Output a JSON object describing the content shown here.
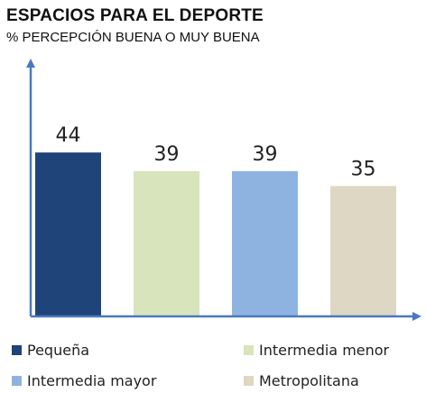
{
  "title": "ESPACIOS  PARA EL DEPORTE",
  "subtitle": "% PERCEPCIÓN  BUENA  O MUY BUENA",
  "chart_data": {
    "type": "bar",
    "title": "ESPACIOS  PARA EL DEPORTE",
    "subtitle": "% PERCEPCIÓN  BUENA  O MUY BUENA",
    "categories": [
      "Pequeña",
      "Intermedia menor",
      "Intermedia mayor",
      "Metropolitana"
    ],
    "values": [
      44,
      39,
      39,
      35
    ],
    "colors": [
      "#1f4479",
      "#d8e4bb",
      "#8eb3e0",
      "#ddd7c3"
    ],
    "data_labels": [
      "44",
      "39",
      "39",
      "35"
    ],
    "ylim": [
      0,
      68
    ],
    "grid": false,
    "legend_position": "bottom",
    "axis_color": "#4a78c4"
  },
  "legend": {
    "items": [
      {
        "label": "Pequeña",
        "color": "#1f4479"
      },
      {
        "label": "Intermedia menor",
        "color": "#d8e4bb"
      },
      {
        "label": "Intermedia mayor",
        "color": "#8eb3e0"
      },
      {
        "label": "Metropolitana",
        "color": "#ddd7c3"
      }
    ]
  }
}
